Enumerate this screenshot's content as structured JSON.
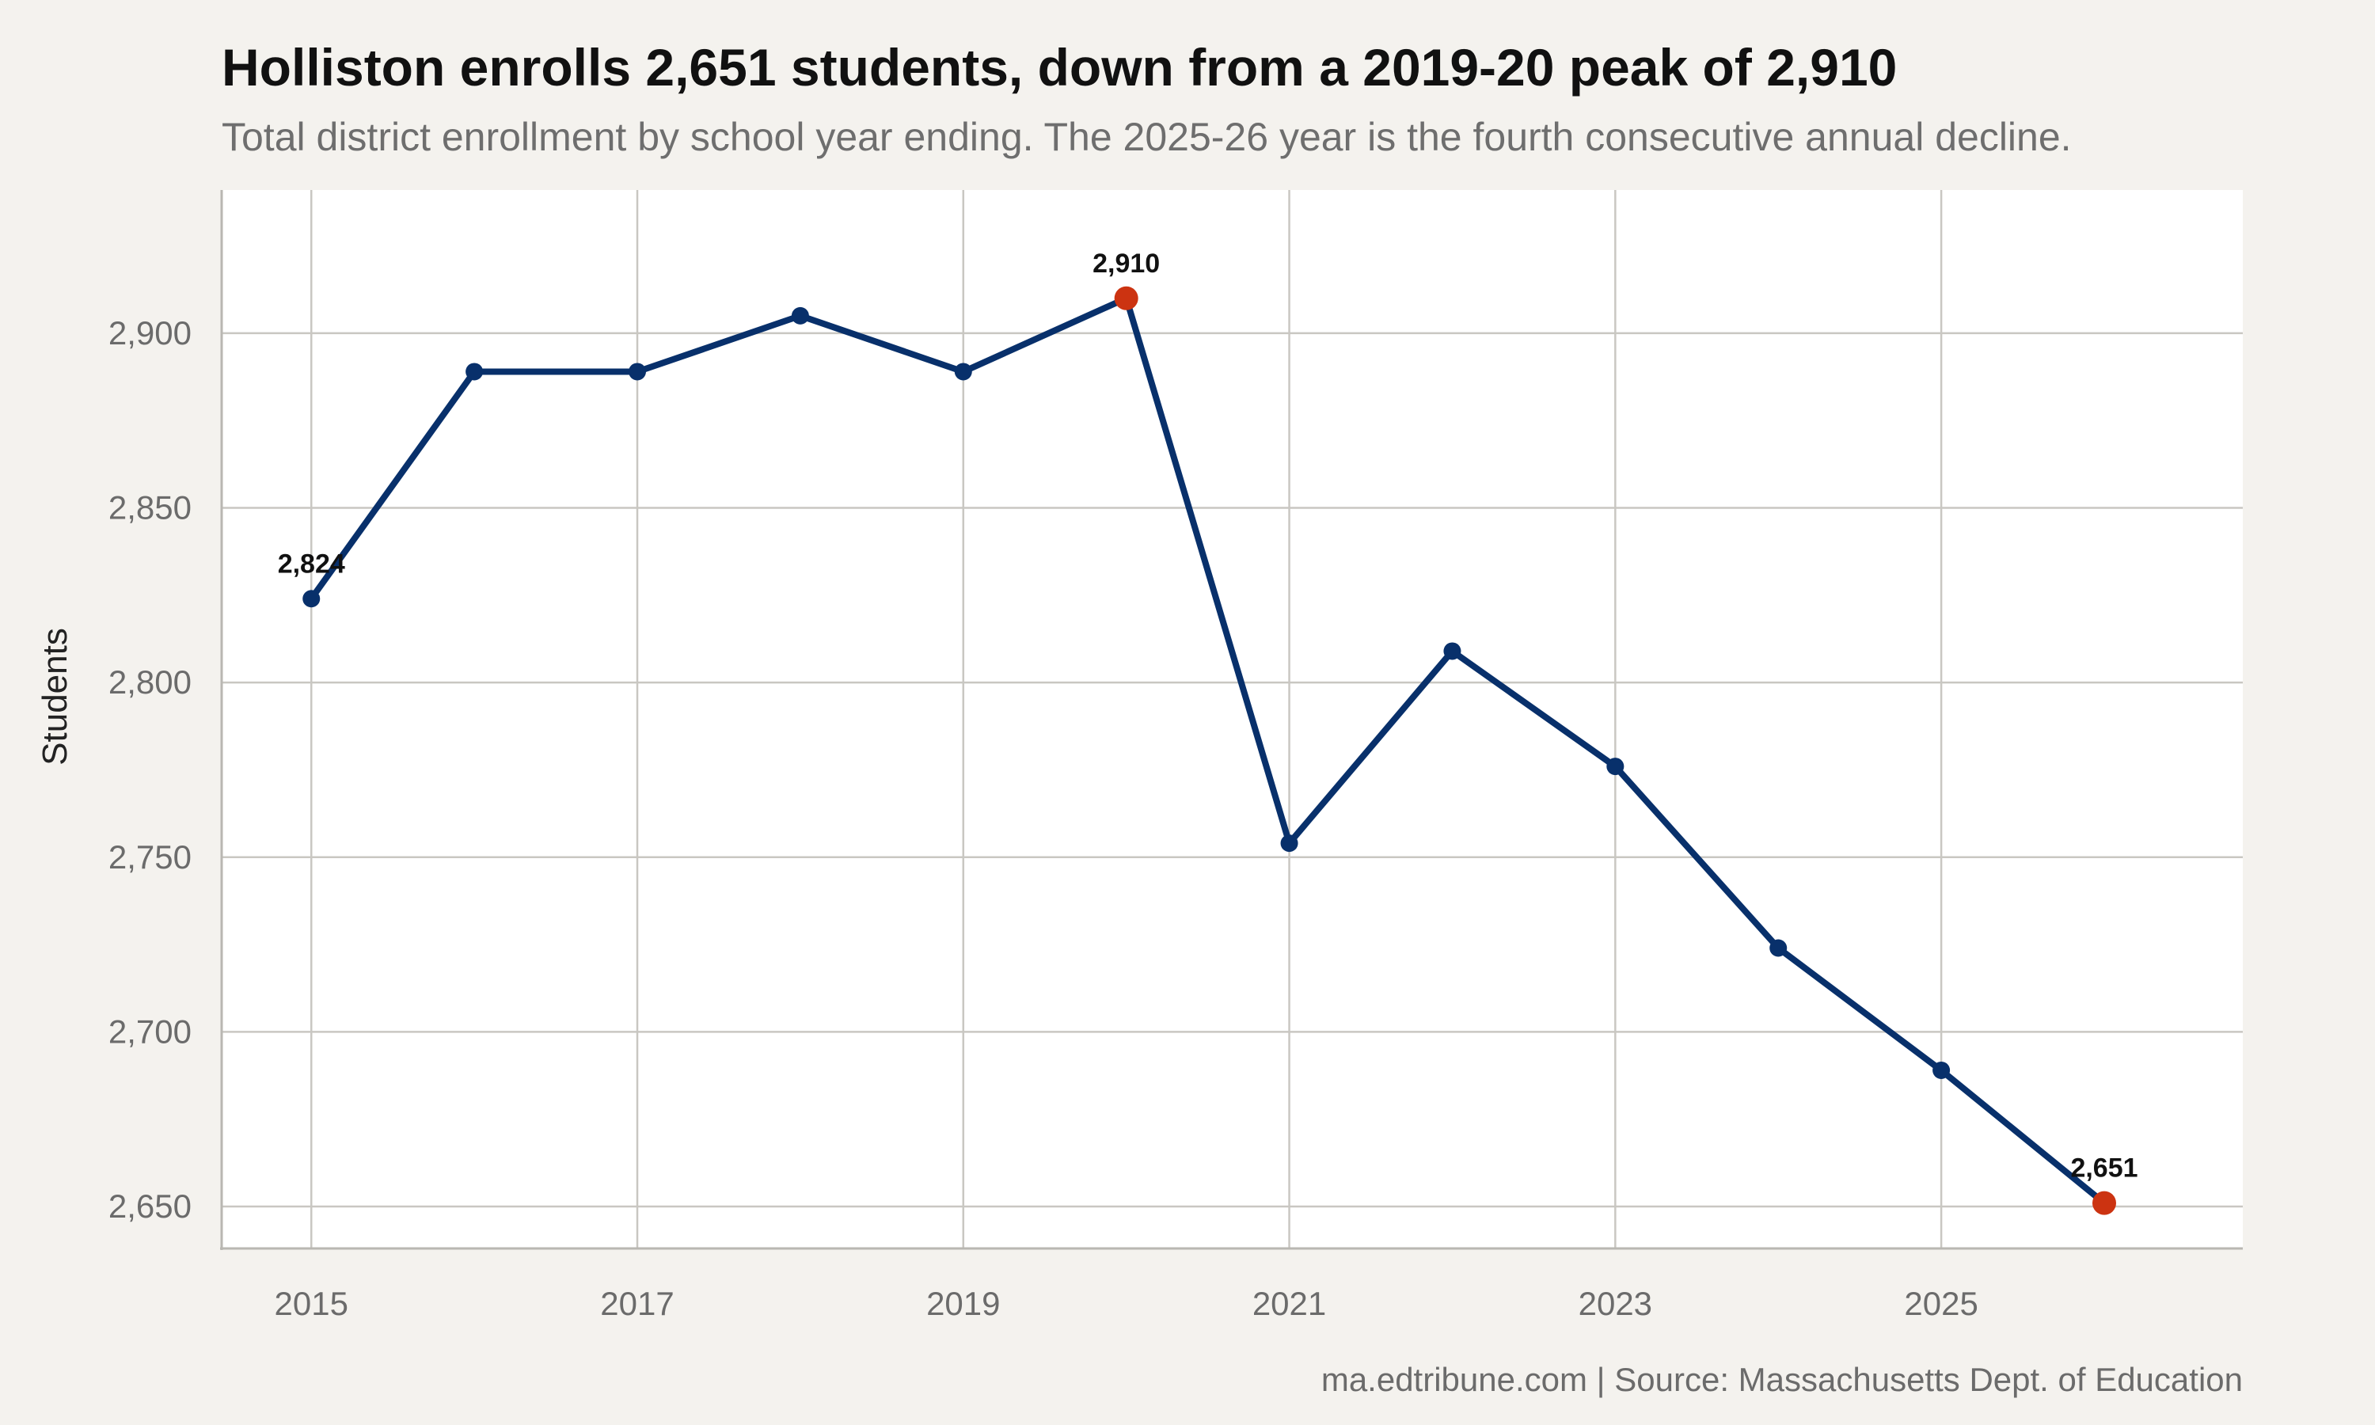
{
  "header": {
    "title": "Holliston enrolls 2,651 students, down from a 2019-20 peak of 2,910",
    "subtitle": "Total district enrollment by school year ending. The 2025-26 year is the fourth consecutive annual decline."
  },
  "footer": {
    "caption": "ma.edtribune.com | Source: Massachusetts Dept. of Education"
  },
  "colors": {
    "line": "#08306b",
    "highlight": "#cc3311",
    "plot_background": "#ffffff",
    "page_background": "#f4f2ee"
  },
  "chart_data": {
    "type": "line",
    "title": "Holliston enrolls 2,651 students, down from a 2019-20 peak of 2,910",
    "subtitle": "Total district enrollment by school year ending. The 2025-26 year is the fourth consecutive annual decline.",
    "xlabel": "",
    "ylabel": "Students",
    "x": [
      2015,
      2016,
      2017,
      2018,
      2019,
      2020,
      2021,
      2022,
      2023,
      2024,
      2025,
      2026
    ],
    "series": [
      {
        "values": [
          2824,
          2889,
          2889,
          2905,
          2889,
          2910,
          2754,
          2809,
          2776,
          2724,
          2689,
          2651
        ]
      }
    ],
    "highlighted_x": [
      2020,
      2026
    ],
    "annotations": [
      {
        "x": 2015,
        "text": "2,824"
      },
      {
        "x": 2020,
        "text": "2,910"
      },
      {
        "x": 2026,
        "text": "2,651"
      }
    ],
    "x_ticks": [
      2015,
      2017,
      2019,
      2021,
      2023,
      2025
    ],
    "x_tick_labels": [
      "2015",
      "2017",
      "2019",
      "2021",
      "2023",
      "2025"
    ],
    "y_ticks": [
      2650,
      2700,
      2750,
      2800,
      2850,
      2900
    ],
    "y_tick_labels": [
      "2,650",
      "2,700",
      "2,750",
      "2,800",
      "2,850",
      "2,900"
    ],
    "xlim": [
      2014.45,
      2026.85
    ],
    "ylim": [
      2638,
      2941
    ],
    "grid": true,
    "legend": "none"
  }
}
